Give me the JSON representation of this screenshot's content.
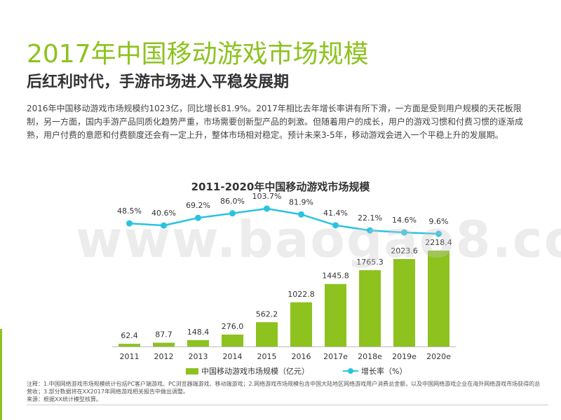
{
  "header": {
    "title": "2017年中国移动游戏市场规模",
    "subtitle": "后红利时代，手游市场进入平稳发展期",
    "description": "2016年中国移动游戏市场规模约1023亿，同比增长81.9%。2017年相比去年增长率讲有所下滑，一方面是受到用户规模的天花板限制，另一方面，国内手游产品同质化趋势严重，市场需要创新型产品的刺激。但随着用户的成长，用户的游戏习惯和付费习惯的逐渐成熟，用户付费的意愿和付费额度还会有一定上升，整体市场相对稳定。预计未来3-5年，移动游戏会进入一个平稳上升的发展期。"
  },
  "watermark": "www.baogao8.com",
  "chart_data": {
    "type": "bar",
    "title": "2011-2020年中国移动游戏市场规模",
    "categories": [
      "2011",
      "2012",
      "2013",
      "2014",
      "2015",
      "2016",
      "2017e",
      "2018e",
      "2019e",
      "2020e"
    ],
    "series": [
      {
        "name": "中国移动游戏市场规模（亿元）",
        "type": "bar",
        "values": [
          62.4,
          87.7,
          148.4,
          276.0,
          562.2,
          1022.8,
          1445.8,
          1765.3,
          2023.6,
          2218.4
        ],
        "labels": [
          "62.4",
          "87.7",
          "148.4",
          "276.0",
          "562.2",
          "1022.8",
          "1445.8",
          "1765.3",
          "2023.6",
          "2218.4"
        ]
      },
      {
        "name": "增长率（%）",
        "type": "line",
        "values": [
          48.5,
          40.6,
          69.2,
          86.0,
          103.7,
          81.9,
          41.4,
          22.1,
          14.6,
          9.6
        ],
        "labels": [
          "48.5%",
          "40.6%",
          "69.2%",
          "86.0%",
          "103.7%",
          "81.9%",
          "41.4%",
          "22.1%",
          "14.6%",
          "9.6%"
        ]
      }
    ],
    "colors": {
      "bar": "#8dc21f",
      "line": "#29c3e0"
    }
  },
  "legend": {
    "bar_label": "中国移动游戏市场规模（亿元）",
    "line_label": "增长率（%）"
  },
  "notes": {
    "line1": "注释：1.中国网络游戏市场规模统计包括PC客户端游戏、PC浏览器端游戏、移动端游戏；2.网络游戏市场规模包含中国大陆地区网络游戏用户消费总金额，以及中国网络游戏企业在海外网络游戏市场获得的总营收；3.部分数据将在XX2017年网络游戏相关报告中做出调整。",
    "line2": "来源：根据XX统计模型核算。"
  }
}
